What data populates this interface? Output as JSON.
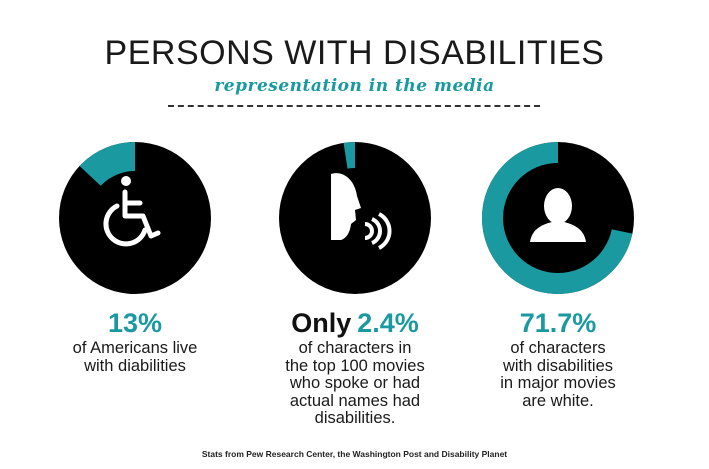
{
  "title": "PERSONS WITH DISABILITIES",
  "subtitle": "representation in the media",
  "colors": {
    "accent": "#1a9aa0",
    "dark": "#000000",
    "text": "#1a1a1a"
  },
  "stats": [
    {
      "icon": "wheelchair-icon",
      "value": "13%",
      "fraction": 0.13,
      "lines": [
        "of Americans live",
        "with diabilities"
      ]
    },
    {
      "icon": "speaking-head-icon",
      "lead": "Only",
      "value": "2.4%",
      "fraction": 0.024,
      "lines": [
        "of characters in",
        "the top 100 movies",
        "who spoke or had",
        "actual names had",
        "disabilities."
      ]
    },
    {
      "icon": "person-silhouette-icon",
      "value": "71.7%",
      "fraction": 0.717,
      "lines": [
        "of characters",
        "with disabilities",
        "in major movies",
        "are white."
      ]
    }
  ],
  "source": "Stats from Pew Research Center, the Washington Post and Disability Planet"
}
